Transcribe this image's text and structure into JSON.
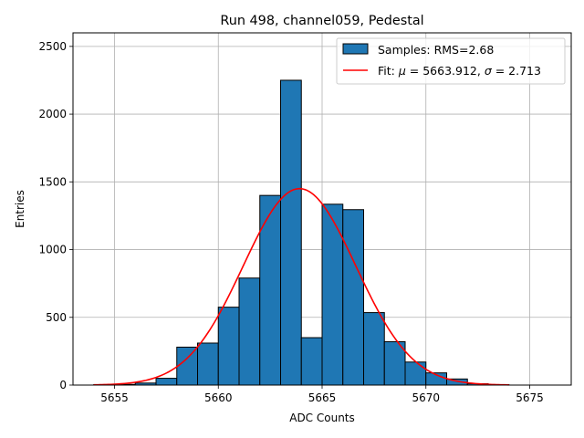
{
  "chart_data": {
    "type": "bar",
    "title": "Run 498, channel059, Pedestal",
    "xlabel": "ADC Counts",
    "ylabel": "Entries",
    "xlim": [
      5653.0,
      5677.0
    ],
    "ylim": [
      0,
      2600
    ],
    "x_ticks": [
      5655,
      5660,
      5665,
      5670,
      5675
    ],
    "y_ticks": [
      0,
      500,
      1000,
      1500,
      2000,
      2500
    ],
    "grid": true,
    "legend_position": "top-right",
    "histogram": {
      "name": "Samples: RMS=2.68",
      "color": "#1f77b4",
      "edge_color": "#000000",
      "bin_width": 1,
      "bin_starts": [
        5654,
        5655,
        5656,
        5657,
        5658,
        5659,
        5660,
        5661,
        5662,
        5663,
        5664,
        5665,
        5666,
        5667,
        5668,
        5669,
        5670,
        5671,
        5672,
        5673,
        5674,
        5675
      ],
      "values": [
        3,
        5,
        15,
        50,
        280,
        310,
        575,
        790,
        1400,
        2250,
        350,
        1335,
        1295,
        535,
        320,
        170,
        90,
        45,
        10,
        3,
        0,
        0
      ]
    },
    "fit": {
      "name": "Fit: μ = 5663.912, σ = 2.713",
      "legend_parts": [
        "Fit: ",
        "μ",
        " = 5663.912, ",
        "σ",
        " = 2.713"
      ],
      "color": "#ff0000",
      "mu": 5663.912,
      "sigma": 2.713,
      "amplitude": 1450,
      "x_range": [
        5654.0,
        5674.0
      ]
    }
  }
}
